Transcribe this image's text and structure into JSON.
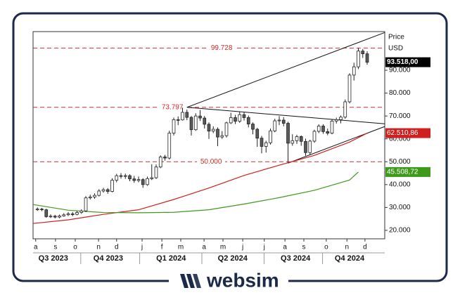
{
  "chart_data": {
    "type": "candlestick",
    "price_label": "Price",
    "currency": "USD",
    "xlim": [
      0,
      80
    ],
    "ylim": [
      16300,
      106900
    ],
    "yticks": [
      {
        "value": 20000,
        "label": "20.000"
      },
      {
        "value": 30000,
        "label": "30.000"
      },
      {
        "value": 40000,
        "label": "40.000"
      },
      {
        "value": 50000,
        "label": "50.000"
      },
      {
        "value": 60000,
        "label": "60.000"
      },
      {
        "value": 70000,
        "label": "70.000"
      },
      {
        "value": 80000,
        "label": "80.000"
      },
      {
        "value": 90000,
        "label": "90.000"
      }
    ],
    "xticks": [
      {
        "value": 0.6,
        "label": "a"
      },
      {
        "value": 5.1,
        "label": "s"
      },
      {
        "value": 9.6,
        "label": "o"
      },
      {
        "value": 14.9,
        "label": "n"
      },
      {
        "value": 19,
        "label": "d"
      },
      {
        "value": 24.8,
        "label": "j"
      },
      {
        "value": 29.3,
        "label": "f"
      },
      {
        "value": 33.6,
        "label": "m"
      },
      {
        "value": 38.9,
        "label": "a"
      },
      {
        "value": 43.2,
        "label": "m"
      },
      {
        "value": 47.7,
        "label": "j"
      },
      {
        "value": 52.6,
        "label": "j"
      },
      {
        "value": 57.3,
        "label": "a"
      },
      {
        "value": 61.6,
        "label": "s"
      },
      {
        "value": 66.7,
        "label": "o"
      },
      {
        "value": 71.4,
        "label": "n"
      },
      {
        "value": 75.5,
        "label": "d"
      }
    ],
    "quarters": [
      {
        "value": 4.6,
        "label": "Q3 2023"
      },
      {
        "value": 17.1,
        "label": "Q4 2023"
      },
      {
        "value": 31.4,
        "label": "Q1 2024"
      },
      {
        "value": 45.4,
        "label": "Q2 2024"
      },
      {
        "value": 59.7,
        "label": "Q3 2024"
      },
      {
        "value": 72,
        "label": "Q4 2024"
      }
    ],
    "candles": {
      "up_color": "#ffffff",
      "down_color": "#5a5a5a",
      "edge_color": "#222222",
      "last_label": "93.518,00",
      "last_color": "#000000",
      "x": [
        1,
        2,
        3,
        4,
        5,
        6,
        7,
        8,
        9,
        10,
        11,
        12,
        13,
        14,
        15,
        16,
        17,
        18,
        19,
        20,
        21,
        22,
        23,
        24,
        25,
        26,
        27,
        28,
        29,
        30,
        31,
        32,
        33,
        34,
        35,
        36,
        37,
        38,
        39,
        40,
        41,
        42,
        43,
        44,
        45,
        46,
        47,
        48,
        49,
        50,
        51,
        52,
        53,
        54,
        55,
        56,
        57,
        58,
        59,
        60,
        61,
        62,
        63,
        64,
        65,
        66,
        67,
        68,
        69,
        70,
        71,
        72,
        73,
        74,
        75,
        76
      ],
      "open": [
        29000,
        29300,
        29000,
        26000,
        26200,
        25800,
        26300,
        26800,
        27200,
        27000,
        27800,
        28500,
        34200,
        34600,
        35300,
        37200,
        37800,
        37000,
        41900,
        43900,
        43600,
        43900,
        42500,
        41800,
        42200,
        40000,
        42600,
        43000,
        47700,
        52100,
        51600,
        62500,
        68400,
        68300,
        71600,
        69400,
        64000,
        70000,
        69100,
        66400,
        63400,
        64200,
        60800,
        61400,
        67000,
        69300,
        67700,
        70600,
        69300,
        66500,
        64200,
        60300,
        56700,
        58300,
        63500,
        67900,
        68200,
        66800,
        58100,
        59200,
        61000,
        58900,
        54000,
        59000,
        63300,
        65600,
        63200,
        62500,
        67800,
        68400,
        69500,
        76200,
        87900,
        91500,
        98400,
        97200
      ],
      "high": [
        30000,
        29800,
        29400,
        27000,
        26800,
        26900,
        27500,
        28000,
        28000,
        28500,
        29200,
        35000,
        35600,
        36200,
        38000,
        38600,
        38500,
        42800,
        44700,
        45000,
        44800,
        44500,
        43800,
        43500,
        42800,
        43500,
        48900,
        48800,
        52800,
        53000,
        63600,
        69300,
        69800,
        73600,
        72800,
        70000,
        71200,
        72600,
        70000,
        67200,
        65500,
        65000,
        63400,
        67500,
        71400,
        70500,
        71800,
        71900,
        70200,
        67200,
        64800,
        61300,
        59200,
        64500,
        68800,
        70000,
        69500,
        67500,
        62000,
        61800,
        61500,
        60100,
        59600,
        64000,
        66400,
        66400,
        64500,
        68500,
        69300,
        70200,
        77200,
        88700,
        93300,
        99700,
        99300,
        98300
      ],
      "low": [
        28500,
        28400,
        25500,
        25400,
        25200,
        25300,
        26000,
        26300,
        26200,
        26600,
        27200,
        28000,
        33500,
        33800,
        34800,
        36500,
        36000,
        36600,
        41000,
        42600,
        42500,
        41500,
        40800,
        41000,
        38600,
        39500,
        42000,
        42500,
        47200,
        50500,
        51000,
        61500,
        66000,
        68000,
        68200,
        61500,
        63500,
        67800,
        64500,
        60000,
        62500,
        56800,
        60000,
        60600,
        66500,
        66500,
        67000,
        68000,
        65000,
        62000,
        56500,
        53700,
        54000,
        57500,
        62900,
        66000,
        65500,
        49600,
        57000,
        57800,
        57000,
        52600,
        53000,
        58300,
        62500,
        62200,
        61600,
        62000,
        66700,
        66800,
        68800,
        75500,
        85500,
        90500,
        95400,
        92400
      ],
      "close": [
        29300,
        29000,
        26000,
        26200,
        25800,
        26300,
        26800,
        27200,
        27000,
        27800,
        28500,
        34200,
        34600,
        35300,
        37200,
        37800,
        37000,
        41900,
        43900,
        43600,
        43900,
        42500,
        41800,
        42200,
        40000,
        42600,
        43000,
        47700,
        52100,
        51600,
        62500,
        68400,
        68300,
        71600,
        69400,
        64000,
        70000,
        69100,
        66400,
        63400,
        64200,
        60800,
        61400,
        67000,
        69300,
        67700,
        70600,
        69300,
        66500,
        64200,
        60300,
        56700,
        58300,
        63500,
        67900,
        68200,
        66800,
        58100,
        59200,
        61000,
        58900,
        54000,
        59000,
        63300,
        65600,
        63200,
        62500,
        67800,
        68400,
        69500,
        76200,
        87900,
        91500,
        98400,
        97200,
        93518
      ]
    },
    "series": [
      {
        "color": "#d01f1f",
        "last_label": "62.510,86",
        "x": [
          0,
          8,
          16,
          24,
          32,
          40,
          48,
          56,
          64,
          72,
          76
        ],
        "values": [
          23000,
          24600,
          27000,
          29000,
          33500,
          38500,
          44000,
          48500,
          52800,
          58600,
          62510.86
        ]
      },
      {
        "color": "#3f9a1b",
        "last_label": "45.508,72",
        "x": [
          0,
          8,
          16,
          24,
          32,
          40,
          48,
          56,
          64,
          72,
          74
        ],
        "values": [
          31300,
          28800,
          27800,
          27700,
          27900,
          29000,
          31500,
          34300,
          37500,
          42000,
          45508.72
        ]
      }
    ],
    "level_color": "#d42a2a",
    "levels": [
      {
        "value": 99728,
        "label": "99.728",
        "label_x": 42.9
      },
      {
        "value": 73797,
        "label": "73.797",
        "label_x": 31.7
      },
      {
        "value": 50000,
        "label": "50.000",
        "label_x": 40.5
      }
    ],
    "trendlines": [
      {
        "x": [
          35,
          80
        ],
        "values": [
          73797,
          106500
        ]
      },
      {
        "x": [
          35,
          80
        ],
        "values": [
          73797,
          66600
        ]
      },
      {
        "x": [
          58,
          80
        ],
        "values": [
          49400,
          65400
        ]
      }
    ]
  },
  "logo": "websim"
}
